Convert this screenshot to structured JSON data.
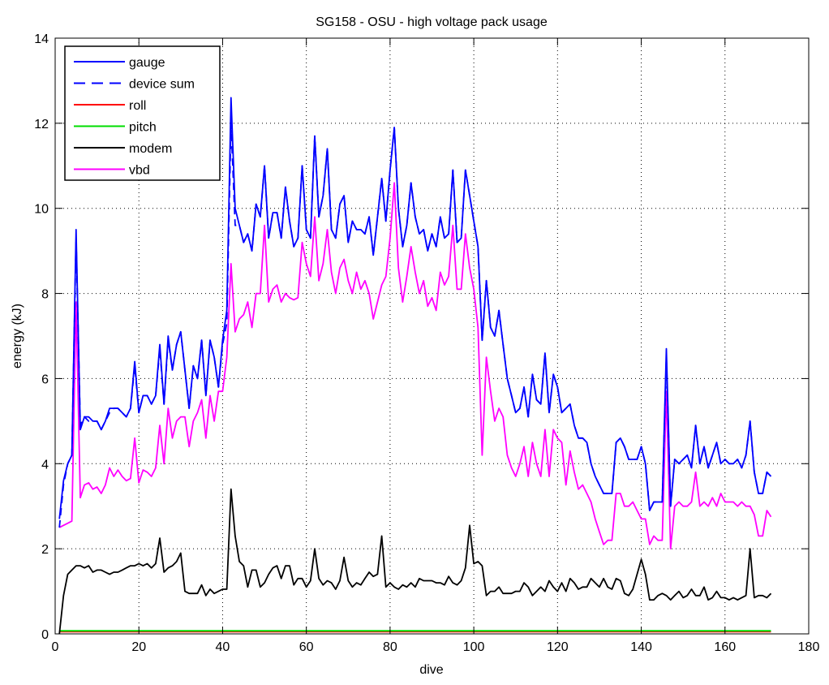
{
  "chart_data": {
    "type": "line",
    "title": "SG158 - OSU - high voltage pack usage",
    "xlabel": "dive",
    "ylabel": "energy (kJ)",
    "xlim": [
      0,
      180
    ],
    "ylim": [
      0,
      14
    ],
    "xticks": [
      0,
      20,
      40,
      60,
      80,
      100,
      120,
      140,
      160,
      180
    ],
    "yticks": [
      0,
      2,
      4,
      6,
      8,
      10,
      12,
      14
    ],
    "grid": true,
    "legend_position": "top-left",
    "x_start": 1,
    "series": [
      {
        "name": "gauge",
        "color": "#0000ff",
        "style": "solid",
        "values": [
          2.7,
          3.6,
          4.0,
          4.2,
          9.5,
          4.8,
          5.1,
          5.1,
          5.0,
          5.0,
          4.8,
          5.0,
          5.3,
          5.3,
          5.3,
          5.2,
          5.1,
          5.3,
          6.4,
          5.2,
          5.6,
          5.6,
          5.4,
          5.6,
          6.8,
          5.4,
          7.0,
          6.2,
          6.8,
          7.1,
          6.2,
          5.3,
          6.3,
          6.0,
          6.9,
          5.6,
          6.9,
          6.5,
          5.8,
          6.9,
          7.6,
          12.6,
          10.0,
          9.6,
          9.2,
          9.4,
          9.0,
          10.1,
          9.8,
          11.0,
          9.3,
          9.9,
          9.9,
          9.3,
          10.5,
          9.7,
          9.1,
          9.3,
          11.0,
          9.5,
          9.3,
          11.7,
          9.8,
          10.3,
          11.4,
          9.5,
          9.3,
          10.1,
          10.3,
          9.2,
          9.7,
          9.5,
          9.5,
          9.4,
          9.8,
          8.9,
          9.8,
          10.7,
          9.7,
          10.9,
          11.9,
          10.0,
          9.1,
          9.6,
          10.6,
          9.8,
          9.4,
          9.5,
          9.0,
          9.4,
          9.1,
          9.8,
          9.3,
          9.4,
          10.9,
          9.2,
          9.3,
          10.9,
          10.3,
          9.7,
          9.1,
          6.9,
          8.3,
          7.2,
          7.0,
          7.6,
          6.8,
          6.0,
          5.6,
          5.2,
          5.3,
          5.8,
          5.1,
          6.1,
          5.5,
          5.4,
          6.6,
          5.2,
          6.1,
          5.8,
          5.2,
          5.3,
          5.4,
          4.9,
          4.6,
          4.6,
          4.5,
          4.0,
          3.7,
          3.5,
          3.3,
          3.3,
          3.3,
          4.5,
          4.6,
          4.4,
          4.1,
          4.1,
          4.1,
          4.4,
          4.0,
          2.9,
          3.1,
          3.1,
          3.1,
          6.7,
          3.0,
          4.1,
          4.0,
          4.1,
          4.2,
          3.9,
          4.9,
          4.0,
          4.4,
          3.9,
          4.2,
          4.5,
          4.0,
          4.1,
          4.0,
          4.0,
          4.1,
          3.9,
          4.2,
          5.0,
          3.8,
          3.3,
          3.3,
          3.8,
          3.7
        ]
      },
      {
        "name": "device sum",
        "color": "#0000ff",
        "style": "dashed",
        "values": [
          2.5,
          3.5,
          4.0,
          4.2,
          9.3,
          4.9,
          5.1,
          5.0,
          5.0,
          5.0,
          4.8,
          5.0,
          5.2,
          5.3,
          5.3,
          5.2,
          5.1,
          5.3,
          6.3,
          5.2,
          5.6,
          5.6,
          5.4,
          5.6,
          6.7,
          5.4,
          6.9,
          6.2,
          6.8,
          7.1,
          6.2,
          5.3,
          6.3,
          6.0,
          6.9,
          5.6,
          6.9,
          6.5,
          5.8,
          6.8,
          7.3,
          12.0,
          9.6,
          9.6,
          9.2,
          9.4,
          9.0,
          10.1,
          9.8,
          11.0,
          9.3,
          9.9,
          9.9,
          9.3,
          10.5,
          9.7,
          9.1,
          9.3,
          11.0,
          9.5,
          9.3,
          11.7,
          9.8,
          10.3,
          11.4,
          9.5,
          9.3,
          10.1,
          10.3,
          9.2,
          9.7,
          9.5,
          9.5,
          9.4,
          9.8,
          8.9,
          9.8,
          10.7,
          9.7,
          10.9,
          11.9,
          10.0,
          9.1,
          9.6,
          10.6,
          9.8,
          9.4,
          9.5,
          9.0,
          9.4,
          9.1,
          9.8,
          9.3,
          9.4,
          10.9,
          9.2,
          9.3,
          10.9,
          10.3,
          9.7,
          9.1,
          6.9,
          8.3,
          7.2,
          7.0,
          7.6,
          6.8,
          6.0,
          5.6,
          5.2,
          5.3,
          5.8,
          5.1,
          6.1,
          5.5,
          5.4,
          6.6,
          5.2,
          6.1,
          5.8,
          5.2,
          5.3,
          5.4,
          4.9,
          4.6,
          4.6,
          4.5,
          4.0,
          3.7,
          3.5,
          3.3,
          3.3,
          3.3,
          4.5,
          4.6,
          4.4,
          4.1,
          4.1,
          4.1,
          4.4,
          4.0,
          2.9,
          3.1,
          3.1,
          3.1,
          6.5,
          3.0,
          4.1,
          4.0,
          4.1,
          4.2,
          3.9,
          4.9,
          4.0,
          4.4,
          3.9,
          4.2,
          4.5,
          4.0,
          4.1,
          4.0,
          4.0,
          4.1,
          3.9,
          4.2,
          5.0,
          3.8,
          3.3,
          3.3,
          3.8,
          3.7
        ]
      },
      {
        "name": "roll",
        "color": "#ff0000",
        "style": "solid",
        "constant": 0.05
      },
      {
        "name": "pitch",
        "color": "#00dd00",
        "style": "solid",
        "constant": 0.07
      },
      {
        "name": "modem",
        "color": "#000000",
        "style": "solid",
        "values": [
          0.0,
          0.9,
          1.4,
          1.5,
          1.6,
          1.6,
          1.55,
          1.6,
          1.45,
          1.5,
          1.5,
          1.45,
          1.4,
          1.45,
          1.45,
          1.5,
          1.55,
          1.6,
          1.6,
          1.65,
          1.6,
          1.65,
          1.55,
          1.65,
          2.25,
          1.45,
          1.55,
          1.6,
          1.7,
          1.9,
          1.0,
          0.95,
          0.95,
          0.95,
          1.15,
          0.9,
          1.05,
          0.95,
          1.0,
          1.05,
          1.05,
          3.4,
          2.3,
          1.7,
          1.6,
          1.1,
          1.5,
          1.5,
          1.1,
          1.2,
          1.4,
          1.55,
          1.6,
          1.3,
          1.6,
          1.6,
          1.15,
          1.3,
          1.3,
          1.1,
          1.25,
          2.0,
          1.3,
          1.15,
          1.25,
          1.2,
          1.05,
          1.25,
          1.8,
          1.25,
          1.1,
          1.2,
          1.15,
          1.3,
          1.45,
          1.35,
          1.4,
          2.3,
          1.1,
          1.2,
          1.1,
          1.05,
          1.15,
          1.1,
          1.2,
          1.1,
          1.3,
          1.25,
          1.25,
          1.25,
          1.2,
          1.2,
          1.15,
          1.35,
          1.2,
          1.15,
          1.25,
          1.55,
          2.55,
          1.65,
          1.7,
          1.6,
          0.9,
          1.0,
          1.0,
          1.1,
          0.95,
          0.95,
          0.95,
          1.0,
          1.0,
          1.2,
          1.1,
          0.9,
          1.0,
          1.1,
          1.0,
          1.25,
          1.1,
          1.0,
          1.2,
          1.0,
          1.3,
          1.2,
          1.05,
          1.1,
          1.1,
          1.3,
          1.2,
          1.1,
          1.3,
          1.1,
          1.05,
          1.3,
          1.25,
          0.95,
          0.9,
          1.05,
          1.4,
          1.75,
          1.4,
          0.8,
          0.8,
          0.9,
          0.95,
          0.9,
          0.8,
          0.9,
          1.0,
          0.85,
          0.9,
          1.05,
          0.9,
          0.9,
          1.1,
          0.8,
          0.85,
          1.0,
          0.85,
          0.85,
          0.8,
          0.85,
          0.8,
          0.85,
          0.9,
          2.0,
          0.85,
          0.9,
          0.9,
          0.85,
          0.95
        ]
      },
      {
        "name": "vbd",
        "color": "#ff00ff",
        "style": "solid",
        "values": [
          2.5,
          2.55,
          2.6,
          2.65,
          7.8,
          3.2,
          3.5,
          3.55,
          3.4,
          3.45,
          3.3,
          3.5,
          3.9,
          3.7,
          3.85,
          3.7,
          3.6,
          3.65,
          4.6,
          3.55,
          3.85,
          3.8,
          3.7,
          3.9,
          4.9,
          4.0,
          5.3,
          4.6,
          5.0,
          5.1,
          5.1,
          4.4,
          5.0,
          5.2,
          5.5,
          4.6,
          5.6,
          5.0,
          5.7,
          5.7,
          6.5,
          8.7,
          7.1,
          7.4,
          7.5,
          7.8,
          7.2,
          8.0,
          8.0,
          9.6,
          7.8,
          8.1,
          8.2,
          7.8,
          8.0,
          7.9,
          7.85,
          7.9,
          9.2,
          8.7,
          8.4,
          9.8,
          8.3,
          8.7,
          9.5,
          8.5,
          8.0,
          8.6,
          8.8,
          8.3,
          8.0,
          8.5,
          8.1,
          8.3,
          8.0,
          7.4,
          7.8,
          8.2,
          8.4,
          9.3,
          10.6,
          8.6,
          7.8,
          8.4,
          9.1,
          8.5,
          8.0,
          8.3,
          7.7,
          7.9,
          7.6,
          8.5,
          8.2,
          8.4,
          9.6,
          8.1,
          8.1,
          9.4,
          8.6,
          8.1,
          7.2,
          4.2,
          6.5,
          5.7,
          5.0,
          5.3,
          5.1,
          4.2,
          3.9,
          3.7,
          4.0,
          4.4,
          3.7,
          4.5,
          4.0,
          3.7,
          4.8,
          3.7,
          4.8,
          4.6,
          4.5,
          3.5,
          4.3,
          3.8,
          3.4,
          3.5,
          3.3,
          3.1,
          2.7,
          2.4,
          2.1,
          2.2,
          2.2,
          3.3,
          3.3,
          3.0,
          3.0,
          3.1,
          2.9,
          2.7,
          2.7,
          2.1,
          2.3,
          2.2,
          2.2,
          5.7,
          2.0,
          3.0,
          3.1,
          3.0,
          3.0,
          3.1,
          3.8,
          3.0,
          3.1,
          3.0,
          3.2,
          3.0,
          3.3,
          3.1,
          3.1,
          3.1,
          3.0,
          3.1,
          3.0,
          3.0,
          2.8,
          2.3,
          2.3,
          2.9,
          2.75
        ]
      }
    ]
  }
}
